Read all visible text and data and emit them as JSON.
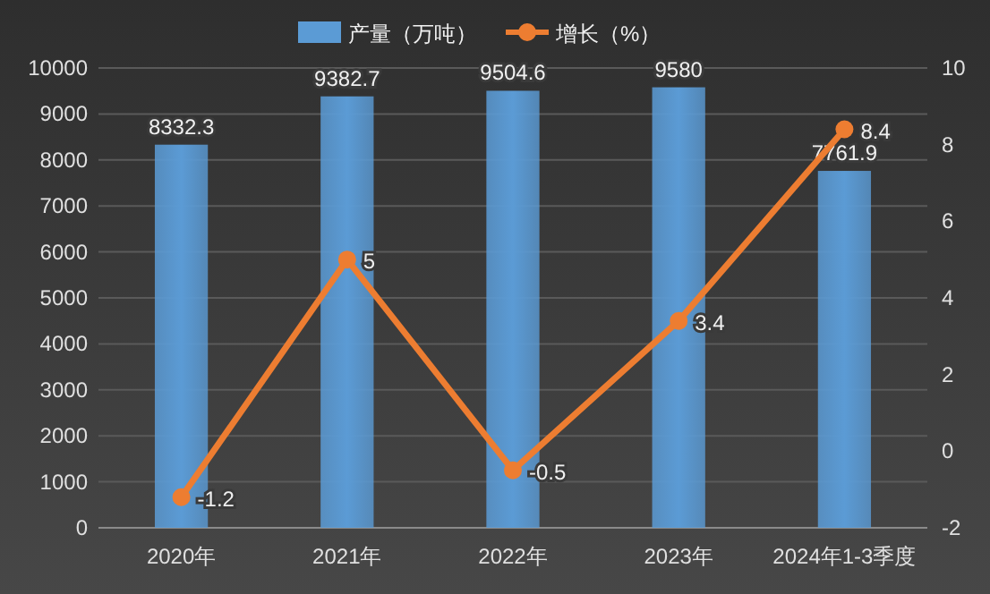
{
  "chart_data": {
    "type": "bar",
    "categories": [
      "2020年",
      "2021年",
      "2022年",
      "2023年",
      "2024年1-3季度"
    ],
    "series": [
      {
        "name": "产量（万吨）",
        "color": "#5b9bd5",
        "values": [
          8332.3,
          9382.7,
          9504.6,
          9580,
          7761.9
        ]
      },
      {
        "name": "增长（%）",
        "type": "line",
        "axis": "y2",
        "color": "#ed7d31",
        "values": [
          -1.2,
          5,
          -0.5,
          3.4,
          8.4
        ]
      }
    ],
    "ylim": [
      0,
      10000
    ],
    "yticks": [
      0,
      1000,
      2000,
      3000,
      4000,
      5000,
      6000,
      7000,
      8000,
      9000,
      10000
    ],
    "y2lim": [
      -2,
      10
    ],
    "y2ticks": [
      -2,
      0,
      2,
      4,
      6,
      8,
      10
    ],
    "grid": "y",
    "legend": "top",
    "data_labels": true,
    "marker": "circle",
    "line_style": "solid"
  }
}
